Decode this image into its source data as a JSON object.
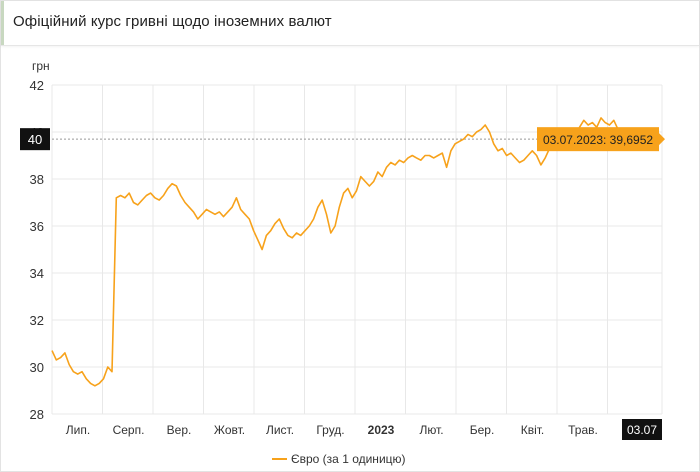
{
  "card": {
    "title": "Офіційний курс гривні щодо іноземних валют"
  },
  "colors": {
    "series": "#f7a21b",
    "grid": "#e8e8e8",
    "crosshair_label_bg": "#111111",
    "tooltip_bg": "#f7a21b"
  },
  "chart_data": {
    "type": "line",
    "yunit": "грн",
    "ylim": [
      28,
      42
    ],
    "y_ticks": [
      28,
      30,
      32,
      34,
      36,
      38,
      40,
      42
    ],
    "x_ticks": [
      {
        "label": "Лип.",
        "bold": false
      },
      {
        "label": "Серп.",
        "bold": false
      },
      {
        "label": "Вер.",
        "bold": false
      },
      {
        "label": "Жовт.",
        "bold": false
      },
      {
        "label": "Лист.",
        "bold": false
      },
      {
        "label": "Груд.",
        "bold": false
      },
      {
        "label": "2023",
        "bold": true
      },
      {
        "label": "Лют.",
        "bold": false
      },
      {
        "label": "Бер.",
        "bold": false
      },
      {
        "label": "Квіт.",
        "bold": false
      },
      {
        "label": "Трав.",
        "bold": false
      }
    ],
    "crosshair_y_label": "40",
    "crosshair_x_label": "03.07",
    "tooltip": "03.07.2023: 39,6952",
    "grid": true,
    "legend_position": "bottom-center",
    "series": [
      {
        "name": "Євро (за 1 одиницю)",
        "values": [
          30.7,
          30.3,
          30.4,
          30.6,
          30.1,
          29.8,
          29.7,
          29.8,
          29.5,
          29.3,
          29.2,
          29.3,
          29.5,
          30.0,
          29.8,
          37.2,
          37.3,
          37.2,
          37.4,
          37.0,
          36.9,
          37.1,
          37.3,
          37.4,
          37.2,
          37.1,
          37.3,
          37.6,
          37.8,
          37.7,
          37.3,
          37.0,
          36.8,
          36.6,
          36.3,
          36.5,
          36.7,
          36.6,
          36.5,
          36.6,
          36.4,
          36.6,
          36.8,
          37.2,
          36.7,
          36.5,
          36.3,
          35.8,
          35.4,
          35.0,
          35.6,
          35.8,
          36.1,
          36.3,
          35.9,
          35.6,
          35.5,
          35.7,
          35.6,
          35.8,
          36.0,
          36.3,
          36.8,
          37.1,
          36.5,
          35.7,
          36.0,
          36.8,
          37.4,
          37.6,
          37.2,
          37.5,
          38.1,
          37.9,
          37.7,
          37.9,
          38.3,
          38.1,
          38.5,
          38.7,
          38.6,
          38.8,
          38.7,
          38.9,
          39.0,
          38.9,
          38.8,
          39.0,
          39.0,
          38.9,
          39.0,
          39.1,
          38.5,
          39.2,
          39.5,
          39.6,
          39.7,
          39.9,
          39.8,
          40.0,
          40.1,
          40.3,
          40.0,
          39.5,
          39.2,
          39.3,
          39.0,
          39.1,
          38.9,
          38.7,
          38.8,
          39.0,
          39.2,
          39.0,
          38.6,
          38.9,
          39.3,
          39.5,
          39.8,
          39.9,
          40.0,
          40.1,
          39.8,
          40.2,
          40.5,
          40.3,
          40.4,
          40.2,
          40.6,
          40.4,
          40.3,
          40.5,
          40.1,
          39.6,
          39.3,
          39.4,
          39.6,
          39.5,
          39.7,
          39.8,
          39.6,
          39.7,
          39.6952
        ]
      }
    ]
  }
}
